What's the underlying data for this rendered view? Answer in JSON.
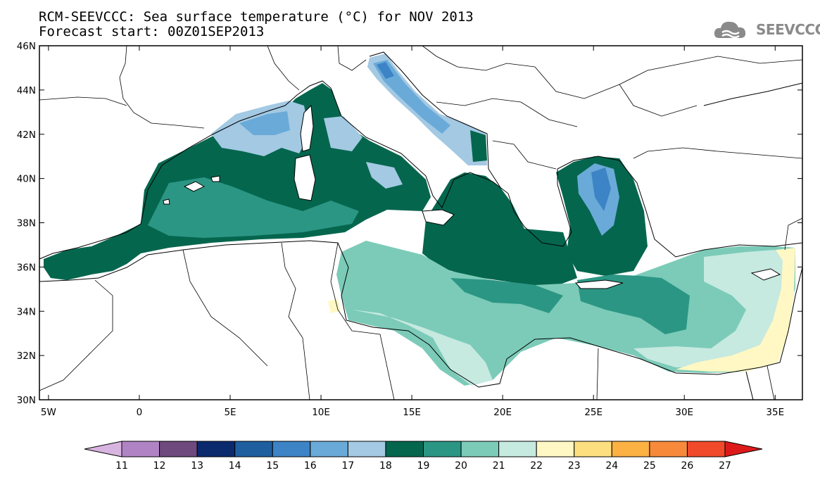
{
  "header": {
    "title": "RCM-SEEVCCC: Sea surface temperature (°C) for NOV 2013",
    "subtitle": "Forecast start: 00Z01SEP2013",
    "logo_text": "SEEVCCC",
    "logo_icon": "cloud-logo-icon"
  },
  "map": {
    "lon_range": [
      -5.5,
      36.5
    ],
    "lat_range": [
      30,
      46
    ],
    "lat_ticks": [
      {
        "value": 46,
        "label": "46N"
      },
      {
        "value": 44,
        "label": "44N"
      },
      {
        "value": 42,
        "label": "42N"
      },
      {
        "value": 40,
        "label": "40N"
      },
      {
        "value": 38,
        "label": "38N"
      },
      {
        "value": 36,
        "label": "36N"
      },
      {
        "value": 34,
        "label": "34N"
      },
      {
        "value": 32,
        "label": "32N"
      },
      {
        "value": 30,
        "label": "30N"
      }
    ],
    "lon_ticks": [
      {
        "value": -5,
        "label": "5W"
      },
      {
        "value": 0,
        "label": "0"
      },
      {
        "value": 5,
        "label": "5E"
      },
      {
        "value": 10,
        "label": "10E"
      },
      {
        "value": 15,
        "label": "15E"
      },
      {
        "value": 20,
        "label": "20E"
      },
      {
        "value": 25,
        "label": "25E"
      },
      {
        "value": 30,
        "label": "30E"
      },
      {
        "value": 35,
        "label": "35E"
      }
    ],
    "colors": {
      "land": "#ffffff",
      "coast": "#000000"
    }
  },
  "colorbar": {
    "labels": [
      "11",
      "12",
      "13",
      "14",
      "15",
      "16",
      "17",
      "18",
      "19",
      "20",
      "21",
      "22",
      "23",
      "24",
      "25",
      "26",
      "27"
    ],
    "colors": [
      "#d8b4e0",
      "#b084c4",
      "#6e4a7e",
      "#0b2a6e",
      "#1f5fa0",
      "#3d84c6",
      "#6aaad8",
      "#a3c9e3",
      "#05664e",
      "#2c9684",
      "#7bcbb8",
      "#c6e9e0",
      "#fff8c4",
      "#fddf80",
      "#fbb243",
      "#f78a3a",
      "#f04a2a",
      "#dd1a1a"
    ]
  }
}
